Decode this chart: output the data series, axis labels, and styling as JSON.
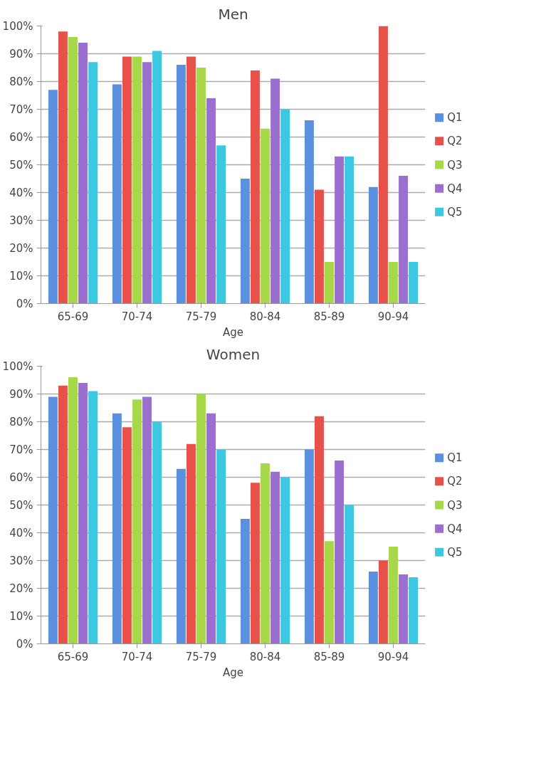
{
  "chart_data": [
    {
      "type": "bar",
      "title": "Men",
      "xlabel": "Age",
      "categories": [
        "65-69",
        "70-74",
        "75-79",
        "80-84",
        "85-89",
        "90-94"
      ],
      "series": [
        {
          "name": "Q1",
          "color": "#5b8fe0",
          "values": [
            77,
            79,
            86,
            45,
            66,
            42
          ]
        },
        {
          "name": "Q2",
          "color": "#e8504a",
          "values": [
            98,
            89,
            89,
            84,
            41,
            100
          ]
        },
        {
          "name": "Q3",
          "color": "#a6d84a",
          "values": [
            96,
            89,
            85,
            63,
            15,
            15
          ]
        },
        {
          "name": "Q4",
          "color": "#9b6fcf",
          "values": [
            94,
            87,
            74,
            81,
            53,
            46
          ]
        },
        {
          "name": "Q5",
          "color": "#3cc8e0",
          "values": [
            87,
            91,
            57,
            70,
            53,
            15
          ]
        }
      ],
      "ylim": [
        0,
        100
      ],
      "yticks": [
        {
          "value": 0,
          "label": "0%"
        },
        {
          "value": 10,
          "label": "10%"
        },
        {
          "value": 20,
          "label": "20%"
        },
        {
          "value": 30,
          "label": "30%"
        },
        {
          "value": 40,
          "label": "40%"
        },
        {
          "value": 50,
          "label": "50%"
        },
        {
          "value": 60,
          "label": "60%"
        },
        {
          "value": 70,
          "label": "70%"
        },
        {
          "value": 80,
          "label": "80%"
        },
        {
          "value": 90,
          "label": "90%"
        },
        {
          "value": 100,
          "label": "100%"
        }
      ],
      "grid": "y",
      "legend": "right"
    },
    {
      "type": "bar",
      "title": "Women",
      "xlabel": "Age",
      "categories": [
        "65-69",
        "70-74",
        "75-79",
        "80-84",
        "85-89",
        "90-94"
      ],
      "series": [
        {
          "name": "Q1",
          "color": "#5b8fe0",
          "values": [
            89,
            83,
            63,
            45,
            70,
            26
          ]
        },
        {
          "name": "Q2",
          "color": "#e8504a",
          "values": [
            93,
            78,
            72,
            58,
            82,
            30
          ]
        },
        {
          "name": "Q3",
          "color": "#a6d84a",
          "values": [
            96,
            88,
            90,
            65,
            37,
            35
          ]
        },
        {
          "name": "Q4",
          "color": "#9b6fcf",
          "values": [
            94,
            89,
            83,
            62,
            66,
            25
          ]
        },
        {
          "name": "Q5",
          "color": "#3cc8e0",
          "values": [
            91,
            80,
            70,
            60,
            50,
            24
          ]
        }
      ],
      "ylim": [
        0,
        100
      ],
      "yticks": [
        {
          "value": 0,
          "label": "0%"
        },
        {
          "value": 10,
          "label": "10%"
        },
        {
          "value": 20,
          "label": "20%"
        },
        {
          "value": 30,
          "label": "30%"
        },
        {
          "value": 40,
          "label": "40%"
        },
        {
          "value": 50,
          "label": "50%"
        },
        {
          "value": 60,
          "label": "60%"
        },
        {
          "value": 70,
          "label": "70%"
        },
        {
          "value": 80,
          "label": "80%"
        },
        {
          "value": 90,
          "label": "90%"
        },
        {
          "value": 100,
          "label": "100%"
        }
      ],
      "grid": "y",
      "legend": "right"
    }
  ]
}
